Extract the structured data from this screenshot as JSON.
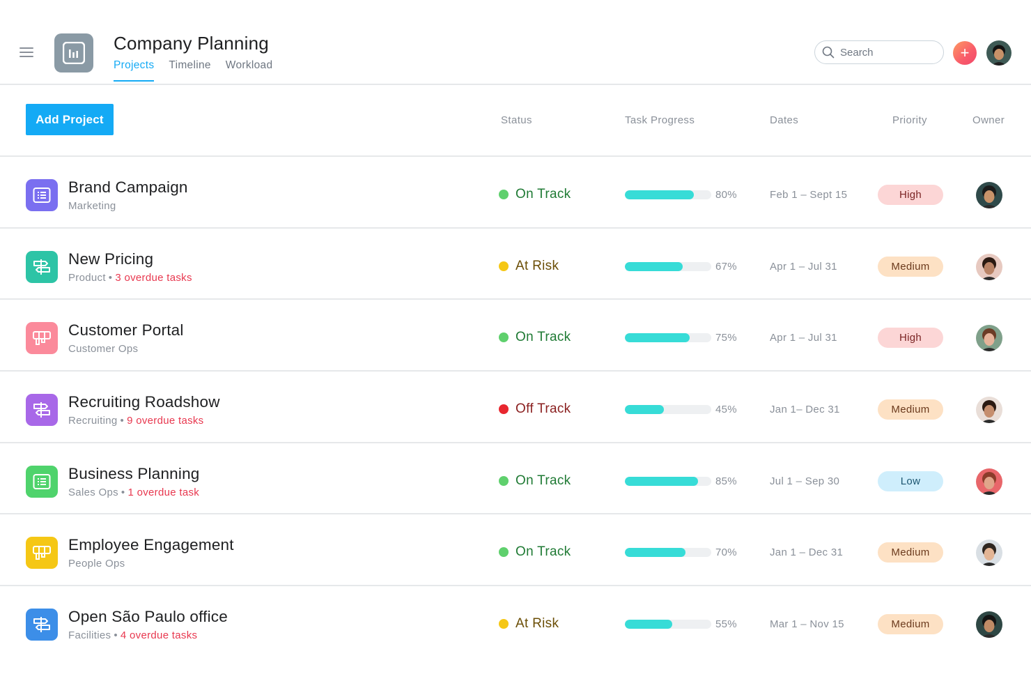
{
  "header": {
    "title": "Company Planning",
    "tabs": [
      {
        "label": "Projects",
        "active": true
      },
      {
        "label": "Timeline",
        "active": false
      },
      {
        "label": "Workload",
        "active": false
      }
    ],
    "search_placeholder": "Search",
    "plus_symbol": "+"
  },
  "toolbar": {
    "add_label": "Add Project",
    "columns": {
      "status": "Status",
      "progress": "Task Progress",
      "dates": "Dates",
      "priority": "Priority",
      "owner": "Owner"
    }
  },
  "colors": {
    "accent": "#14aaf5",
    "on_track": "#5fd06d",
    "at_risk": "#f5c715",
    "off_track": "#e8272f",
    "progress": "#37dcd7",
    "overdue": "#e8384f",
    "priority_high_bg": "#fcd6d6",
    "priority_medium_bg": "#fde1c4",
    "priority_low_bg": "#cfeefc"
  },
  "projects": [
    {
      "name": "Brand Campaign",
      "team": "Marketing",
      "overdue": "",
      "icon": "list-icon",
      "icon_color": "#7a6ff0",
      "status": "On Track",
      "status_key": "on_track",
      "progress": 80,
      "progress_label": "80%",
      "dates": "Feb 1 – Sept 15",
      "priority": "High",
      "priority_key": "high",
      "owner_skin": "#c9936a",
      "owner_hair": "#1b1b1b",
      "owner_bg": "#2f4a4a"
    },
    {
      "name": "New Pricing",
      "team": "Product",
      "overdue": "3 overdue tasks",
      "icon": "signpost-icon",
      "icon_color": "#2dc4a6",
      "status": "At Risk",
      "status_key": "at_risk",
      "progress": 67,
      "progress_label": "67%",
      "dates": "Apr 1 – Jul 31",
      "priority": "Medium",
      "priority_key": "medium",
      "owner_skin": "#b98366",
      "owner_hair": "#2a1a12",
      "owner_bg": "#e7c9c0"
    },
    {
      "name": "Customer Portal",
      "team": "Customer Ops",
      "overdue": "",
      "icon": "board-icon",
      "icon_color": "#fb8a9b",
      "status": "On Track",
      "status_key": "on_track",
      "progress": 75,
      "progress_label": "75%",
      "dates": "Apr 1 – Jul 31",
      "priority": "High",
      "priority_key": "high",
      "owner_skin": "#e6b39a",
      "owner_hair": "#6b3b25",
      "owner_bg": "#7fa08a"
    },
    {
      "name": "Recruiting Roadshow",
      "team": "Recruiting",
      "overdue": "9 overdue tasks",
      "icon": "signpost-icon",
      "icon_color": "#a868e8",
      "status": "Off Track",
      "status_key": "off_track",
      "progress": 45,
      "progress_label": "45%",
      "dates": "Jan 1– Dec 31",
      "priority": "Medium",
      "priority_key": "medium",
      "owner_skin": "#c58e6e",
      "owner_hair": "#2b1a12",
      "owner_bg": "#e9ded8"
    },
    {
      "name": "Business Planning",
      "team": "Sales Ops",
      "overdue": "1 overdue task",
      "icon": "list-icon",
      "icon_color": "#4fd36c",
      "status": "On Track",
      "status_key": "on_track",
      "progress": 85,
      "progress_label": "85%",
      "dates": "Jul 1 – Sep 30",
      "priority": "Low",
      "priority_key": "low",
      "owner_skin": "#e0a58a",
      "owner_hair": "#8b3c2a",
      "owner_bg": "#e8666a"
    },
    {
      "name": "Employee Engagement",
      "team": "People Ops",
      "overdue": "",
      "icon": "board-icon",
      "icon_color": "#f5c715",
      "status": "On Track",
      "status_key": "on_track",
      "progress": 70,
      "progress_label": "70%",
      "dates": "Jan 1 – Dec 31",
      "priority": "Medium",
      "priority_key": "medium",
      "owner_skin": "#e3b595",
      "owner_hair": "#2e2620",
      "owner_bg": "#d9dfe4"
    },
    {
      "name": "Open São Paulo office",
      "team": "Facilities",
      "overdue": "4 overdue tasks",
      "icon": "signpost-icon",
      "icon_color": "#3c8ee8",
      "status": "At Risk",
      "status_key": "at_risk",
      "progress": 55,
      "progress_label": "55%",
      "dates": "Mar 1 – Nov 15",
      "priority": "Medium",
      "priority_key": "medium",
      "owner_skin": "#c08b66",
      "owner_hair": "#141414",
      "owner_bg": "#2e4744"
    }
  ]
}
